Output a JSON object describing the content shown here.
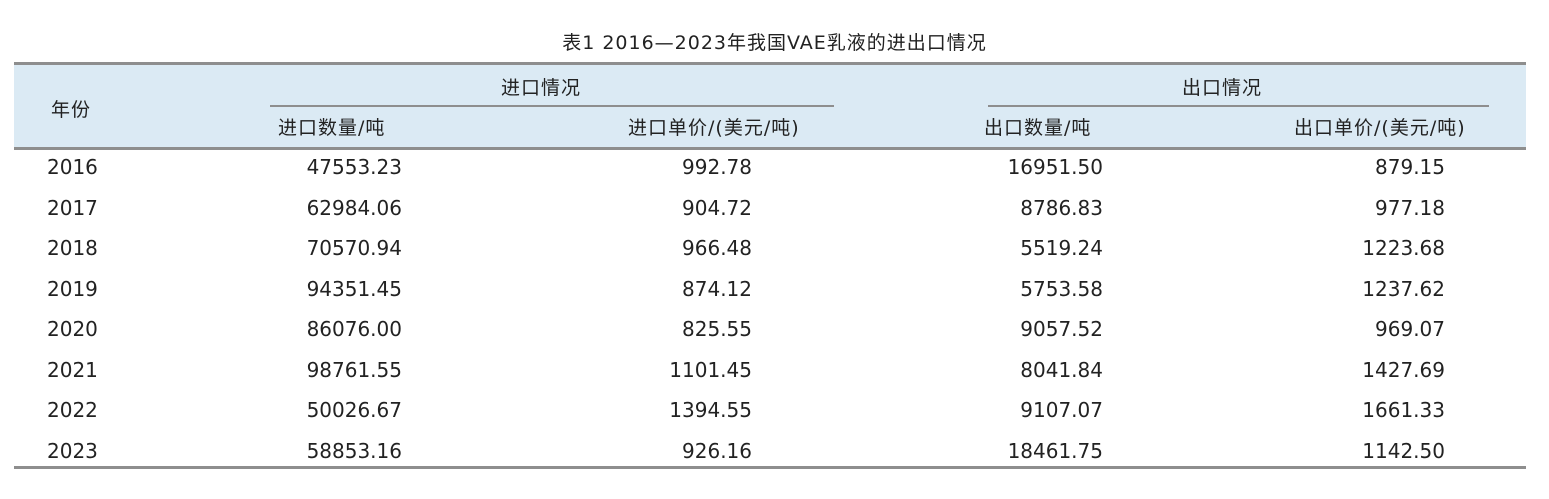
{
  "title": "表1  2016—2023年我国VAE乳液的进出口情况",
  "headers": {
    "year": "年份",
    "import_group": "进口情况",
    "export_group": "出口情况",
    "import_qty": "进口数量/吨",
    "import_price": "进口单价/(美元/吨)",
    "export_qty": "出口数量/吨",
    "export_price": "出口单价/(美元/吨)"
  },
  "rows": [
    {
      "year": "2016",
      "import_qty": "47553.23",
      "import_price": "992.78",
      "export_qty": "16951.50",
      "export_price": "879.15"
    },
    {
      "year": "2017",
      "import_qty": "62984.06",
      "import_price": "904.72",
      "export_qty": "8786.83",
      "export_price": "977.18"
    },
    {
      "year": "2018",
      "import_qty": "70570.94",
      "import_price": "966.48",
      "export_qty": "5519.24",
      "export_price": "1223.68"
    },
    {
      "year": "2019",
      "import_qty": "94351.45",
      "import_price": "874.12",
      "export_qty": "5753.58",
      "export_price": "1237.62"
    },
    {
      "year": "2020",
      "import_qty": "86076.00",
      "import_price": "825.55",
      "export_qty": "9057.52",
      "export_price": "969.07"
    },
    {
      "year": "2021",
      "import_qty": "98761.55",
      "import_price": "1101.45",
      "export_qty": "8041.84",
      "export_price": "1427.69"
    },
    {
      "year": "2022",
      "import_qty": "50026.67",
      "import_price": "1394.55",
      "export_qty": "9107.07",
      "export_price": "1661.33"
    },
    {
      "year": "2023",
      "import_qty": "58853.16",
      "import_price": "926.16",
      "export_qty": "18461.75",
      "export_price": "1142.50"
    }
  ]
}
